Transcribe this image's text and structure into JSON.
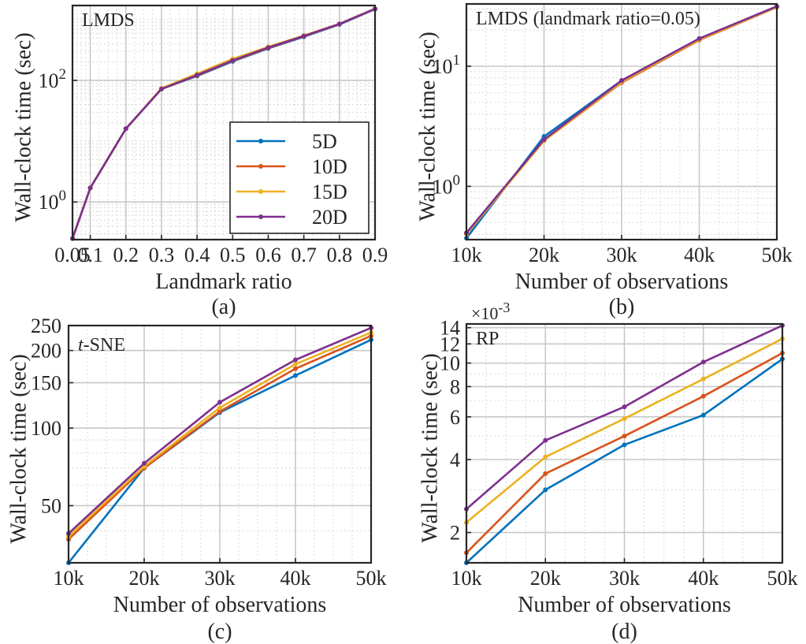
{
  "figure": {
    "series_colors": {
      "5D": "#0072BD",
      "10D": "#D95319",
      "15D": "#EDB120",
      "20D": "#7E2F8E"
    }
  },
  "chart_data": [
    {
      "id": "a",
      "type": "line",
      "caption": "(a)",
      "panel_title": "LMDS",
      "xlabel": "Landmark ratio",
      "ylabel": "Wall-clock time (sec)",
      "x_scale": "linear",
      "y_scale": "log",
      "xlim": [
        0.05,
        0.9
      ],
      "ylim": [
        0.24,
        1700
      ],
      "x": [
        0.05,
        0.1,
        0.2,
        0.3,
        0.4,
        0.5,
        0.6,
        0.7,
        0.8,
        0.9
      ],
      "xticks": [
        0.05,
        0.1,
        0.2,
        0.3,
        0.4,
        0.5,
        0.6,
        0.7,
        0.8,
        0.9
      ],
      "xtick_labels": [
        "0.05",
        "0.1",
        "0.2",
        "0.3",
        "0.4",
        "0.5",
        "0.6",
        "0.7",
        "0.8",
        "0.9"
      ],
      "yticks": [
        1,
        100
      ],
      "ytick_base": "10",
      "ytick_exponents": [
        "0",
        "2"
      ],
      "grid": true,
      "legend": {
        "position": "center-right",
        "entries": [
          "5D",
          "10D",
          "15D",
          "20D"
        ]
      },
      "series": [
        {
          "name": "5D",
          "values": [
            0.25,
            1.7,
            16,
            72,
            118,
            205,
            335,
            520,
            830,
            1480
          ]
        },
        {
          "name": "10D",
          "values": [
            0.25,
            1.7,
            16,
            72,
            120,
            210,
            340,
            530,
            840,
            1500
          ]
        },
        {
          "name": "15D",
          "values": [
            0.25,
            1.7,
            16,
            74,
            128,
            225,
            355,
            545,
            850,
            1510
          ]
        },
        {
          "name": "20D",
          "values": [
            0.25,
            1.7,
            16,
            72,
            122,
            212,
            345,
            535,
            845,
            1500
          ]
        }
      ]
    },
    {
      "id": "b",
      "type": "line",
      "caption": "(b)",
      "panel_title": "LMDS (landmark ratio=0.05)",
      "xlabel": "Number of observations",
      "ylabel": "Wall-clock time (sec)",
      "x_scale": "linear",
      "y_scale": "log",
      "xlim": [
        10000,
        50000
      ],
      "ylim": [
        0.36,
        33
      ],
      "x": [
        10000,
        20000,
        30000,
        40000,
        50000
      ],
      "xticks": [
        10000,
        20000,
        30000,
        40000,
        50000
      ],
      "xtick_labels": [
        "10k",
        "20k",
        "30k",
        "40k",
        "50k"
      ],
      "yticks": [
        1,
        10
      ],
      "ytick_base": "10",
      "ytick_exponents": [
        "0",
        "1"
      ],
      "grid": true,
      "series": [
        {
          "name": "5D",
          "values": [
            0.37,
            2.6,
            7.6,
            16.9,
            31.5
          ]
        },
        {
          "name": "10D",
          "values": [
            0.4,
            2.4,
            7.3,
            16.5,
            31
          ]
        },
        {
          "name": "15D",
          "values": [
            0.4,
            2.4,
            7.4,
            16.7,
            31.2
          ]
        },
        {
          "name": "20D",
          "values": [
            0.41,
            2.45,
            7.6,
            17,
            31.5
          ]
        }
      ]
    },
    {
      "id": "c",
      "type": "line",
      "caption": "(c)",
      "panel_title": "t-SNE",
      "panel_title_italic": "t",
      "panel_title_rest": "-SNE",
      "xlabel": "Number of observations",
      "ylabel": "Wall-clock time (sec)",
      "x_scale": "linear",
      "y_scale": "log",
      "xlim": [
        10000,
        50000
      ],
      "ylim": [
        30,
        250
      ],
      "x": [
        10000,
        20000,
        30000,
        40000,
        50000
      ],
      "xticks": [
        10000,
        20000,
        30000,
        40000,
        50000
      ],
      "xtick_labels": [
        "10k",
        "20k",
        "30k",
        "40k",
        "50k"
      ],
      "yticks": [
        50,
        100,
        150,
        200,
        250
      ],
      "ytick_labels": [
        "50",
        "100",
        "150",
        "200",
        "250"
      ],
      "grid": true,
      "series": [
        {
          "name": "5D",
          "values": [
            30,
            70,
            115,
            160,
            220
          ]
        },
        {
          "name": "10D",
          "values": [
            37,
            70,
            116,
            170,
            228
          ]
        },
        {
          "name": "15D",
          "values": [
            38,
            71,
            120,
            177,
            235
          ]
        },
        {
          "name": "20D",
          "values": [
            39,
            73,
            126,
            184,
            245
          ]
        }
      ]
    },
    {
      "id": "d",
      "type": "line",
      "caption": "(d)",
      "panel_title": "RP",
      "xlabel": "Number of observations",
      "ylabel": "Wall-clock time (sec)",
      "x_scale": "linear",
      "y_scale": "log",
      "xlim": [
        10000,
        50000
      ],
      "ylim": [
        0.0015,
        0.0145
      ],
      "x": [
        10000,
        20000,
        30000,
        40000,
        50000
      ],
      "xticks": [
        10000,
        20000,
        30000,
        40000,
        50000
      ],
      "xtick_labels": [
        "10k",
        "20k",
        "30k",
        "40k",
        "50k"
      ],
      "yticks": [
        0.002,
        0.004,
        0.006,
        0.008,
        0.01,
        0.012,
        0.014
      ],
      "ytick_labels": [
        "2",
        "4",
        "6",
        "8",
        "10",
        "12",
        "14"
      ],
      "y_multiplier_base": "×10",
      "y_multiplier_exponent": "-3",
      "grid": true,
      "series": [
        {
          "name": "5D",
          "values": [
            0.0015,
            0.003,
            0.0046,
            0.0061,
            0.0104
          ]
        },
        {
          "name": "10D",
          "values": [
            0.00165,
            0.0035,
            0.005,
            0.0073,
            0.011
          ]
        },
        {
          "name": "15D",
          "values": [
            0.0022,
            0.0041,
            0.0059,
            0.0086,
            0.0126
          ]
        },
        {
          "name": "20D",
          "values": [
            0.0025,
            0.0048,
            0.0066,
            0.0101,
            0.0143
          ]
        }
      ]
    }
  ]
}
